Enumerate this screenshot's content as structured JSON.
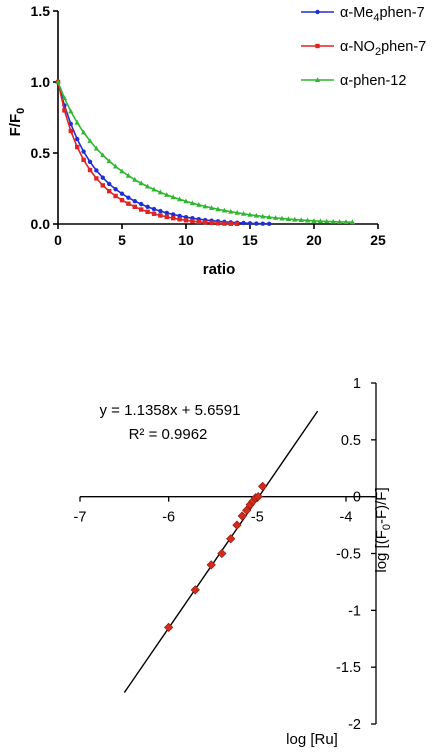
{
  "chart_data": [
    {
      "type": "line",
      "title": "",
      "xlabel": "ratio",
      "ylabel_main": "F/F",
      "ylabel_sub": "0",
      "xlim": [
        0,
        25
      ],
      "ylim": [
        0,
        1.5
      ],
      "xticks": [
        "0",
        "5",
        "10",
        "15",
        "20",
        "25"
      ],
      "yticks": [
        "0.0",
        "0.5",
        "1.0",
        "1.5"
      ],
      "grid": false,
      "legend_position": "top-right",
      "series": [
        {
          "name_pre": "α-Me",
          "name_sub": "4",
          "name_post": "phen-7",
          "color": "#1f2fd6",
          "marker": "circle",
          "x": [
            0,
            0.5,
            1,
            1.5,
            2,
            2.5,
            3,
            3.5,
            4,
            4.5,
            5,
            5.5,
            6,
            6.5,
            7,
            7.5,
            8,
            8.5,
            9,
            9.5,
            10,
            10.5,
            11,
            11.5,
            12,
            12.5,
            13,
            13.5,
            14,
            14.5,
            15,
            15.5,
            16,
            16.5
          ],
          "y": [
            1.0,
            0.835,
            0.705,
            0.598,
            0.51,
            0.438,
            0.377,
            0.326,
            0.282,
            0.245,
            0.213,
            0.185,
            0.161,
            0.14,
            0.121,
            0.105,
            0.091,
            0.078,
            0.067,
            0.057,
            0.048,
            0.041,
            0.034,
            0.028,
            0.023,
            0.019,
            0.015,
            0.012,
            0.009,
            0.007,
            0.005,
            0.003,
            0.002,
            0.001
          ]
        },
        {
          "name_pre": "α-NO",
          "name_sub": "2",
          "name_post": "phen-7",
          "color": "#e02424",
          "marker": "square",
          "x": [
            0,
            0.5,
            1,
            1.5,
            2,
            2.5,
            3,
            3.5,
            4,
            4.5,
            5,
            5.5,
            6,
            6.5,
            7,
            7.5,
            8,
            8.5,
            9,
            9.5,
            10,
            10.5,
            11,
            11.5,
            12,
            12.5,
            13,
            13.5,
            14
          ],
          "y": [
            1.0,
            0.8,
            0.655,
            0.542,
            0.452,
            0.38,
            0.321,
            0.272,
            0.231,
            0.197,
            0.168,
            0.143,
            0.121,
            0.102,
            0.086,
            0.072,
            0.06,
            0.05,
            0.041,
            0.033,
            0.026,
            0.02,
            0.015,
            0.011,
            0.008,
            0.005,
            0.003,
            0.002,
            0.001
          ]
        },
        {
          "name_pre": "α-phen-12",
          "name_sub": "",
          "name_post": "",
          "color": "#2fb82f",
          "marker": "triangle",
          "x": [
            0,
            0.5,
            1,
            1.5,
            2,
            2.5,
            3,
            3.5,
            4,
            4.5,
            5,
            5.5,
            6,
            6.5,
            7,
            7.5,
            8,
            8.5,
            9,
            9.5,
            10,
            10.5,
            11,
            11.5,
            12,
            12.5,
            13,
            13.5,
            14,
            14.5,
            15,
            15.5,
            16,
            16.5,
            17,
            17.5,
            18,
            18.5,
            19,
            19.5,
            20,
            20.5,
            21,
            21.5,
            22,
            22.5,
            23
          ],
          "y": [
            1.0,
            0.887,
            0.793,
            0.714,
            0.645,
            0.585,
            0.532,
            0.485,
            0.443,
            0.405,
            0.371,
            0.34,
            0.312,
            0.287,
            0.264,
            0.243,
            0.223,
            0.205,
            0.189,
            0.174,
            0.16,
            0.147,
            0.135,
            0.124,
            0.113,
            0.104,
            0.095,
            0.087,
            0.079,
            0.072,
            0.065,
            0.059,
            0.053,
            0.048,
            0.043,
            0.039,
            0.035,
            0.031,
            0.028,
            0.025,
            0.022,
            0.02,
            0.018,
            0.016,
            0.015,
            0.014,
            0.013
          ]
        }
      ]
    },
    {
      "type": "scatter",
      "title": "",
      "xlabel": "log [Ru]",
      "ylabel": "log [(F0-F)/F]",
      "ylabel_pre": "log [(F",
      "ylabel_sub": "0",
      "ylabel_post": "-F)/F]",
      "xlim": [
        -7,
        -4
      ],
      "ylim": [
        -2,
        1
      ],
      "xticks": [
        "-7",
        "-6",
        "-5",
        "-4"
      ],
      "yticks": [
        "1",
        "0.5",
        "0",
        "-0.5",
        "-1",
        "-1.5",
        "-2"
      ],
      "grid": false,
      "equation": "y = 1.1358x + 5.6591",
      "r_squared": "R² = 0.9962",
      "fit": {
        "slope": 1.1358,
        "intercept": 5.6591,
        "x_from": -6.5,
        "x_to": -4.32
      },
      "point_color": "#d42a1c",
      "points": {
        "x": [
          -6.0,
          -5.7,
          -5.52,
          -5.4,
          -5.3,
          -5.23,
          -5.17,
          -5.12,
          -5.08,
          -5.05,
          -5.02,
          -4.99,
          -4.94
        ],
        "y": [
          -1.15,
          -0.82,
          -0.6,
          -0.5,
          -0.37,
          -0.25,
          -0.17,
          -0.12,
          -0.07,
          -0.04,
          -0.01,
          0.0,
          0.09
        ]
      }
    }
  ]
}
